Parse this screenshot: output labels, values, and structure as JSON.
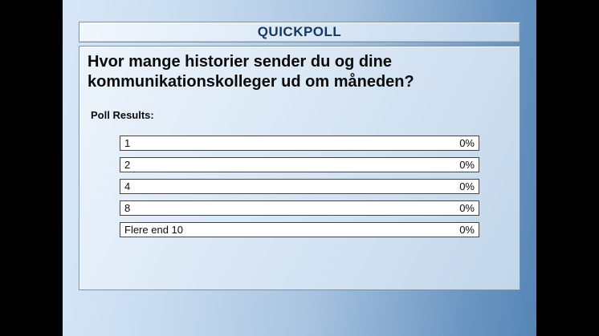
{
  "poll": {
    "header_label": "QUICKPOLL",
    "question": "Hvor mange historier sender du og dine kommunikationskolleger ud om måneden?",
    "results_label": "Poll Results:",
    "options": [
      {
        "label": "1",
        "value": "0%"
      },
      {
        "label": "2",
        "value": "0%"
      },
      {
        "label": "4",
        "value": "0%"
      },
      {
        "label": "8",
        "value": "0%"
      },
      {
        "label": "Flere end 10",
        "value": "0%"
      }
    ]
  },
  "colors": {
    "letterbox": "#000000",
    "background_left": "#D8E7F7",
    "background_right": "#5585B6",
    "panel_light": "#EDF4FB",
    "panel_shaded": "#C2D6EA",
    "panel_border": "#7D92A4",
    "header_text": "#16375F",
    "result_bar_fill": "#FFFFFF",
    "result_bar_border": "#454545",
    "question_text": "#0B0B0B"
  }
}
